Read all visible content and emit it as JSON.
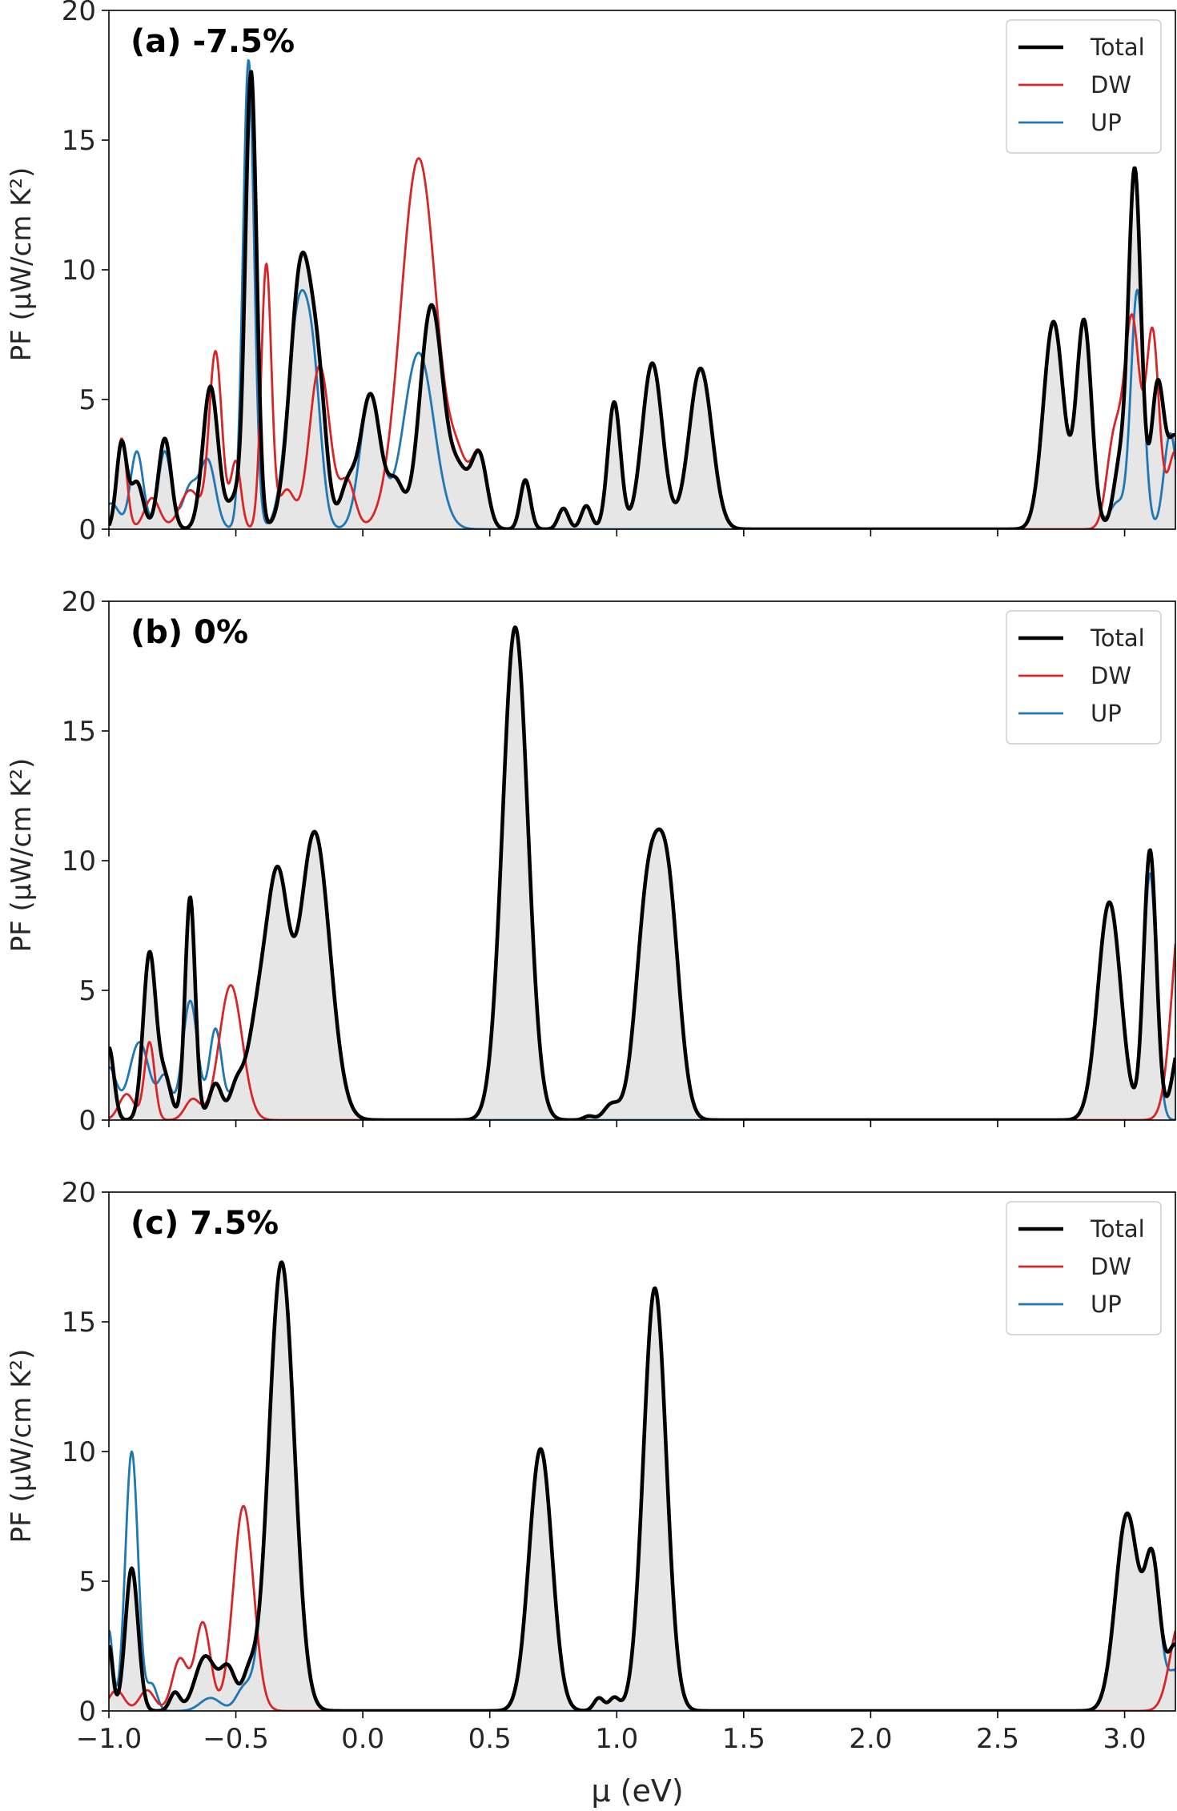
{
  "figure": {
    "xlabel": "μ (eV)",
    "ylabel": "PF (μW/cm K²)",
    "xlim": [
      -1.0,
      3.2
    ],
    "ylim": [
      0,
      20
    ],
    "xticks": [
      "−1.0",
      "−0.5",
      "0.0",
      "0.5",
      "1.0",
      "1.5",
      "2.0",
      "2.5",
      "3.0"
    ],
    "xtick_values": [
      -1.0,
      -0.5,
      0.0,
      0.5,
      1.0,
      1.5,
      2.0,
      2.5,
      3.0
    ],
    "yticks": [
      "0",
      "5",
      "10",
      "15",
      "20"
    ],
    "ytick_values": [
      0,
      5,
      10,
      15,
      20
    ],
    "legend": [
      {
        "label": "Total",
        "color": "#000000"
      },
      {
        "label": "DW",
        "color": "#d62728"
      },
      {
        "label": "UP",
        "color": "#1f77b4"
      }
    ]
  },
  "chart_data": [
    {
      "type": "line",
      "title": "(a) -7.5%",
      "xlabel": "",
      "ylabel": "PF (μW/cm K²)",
      "xlim": [
        -1.0,
        3.2
      ],
      "ylim": [
        0,
        20
      ],
      "legend_position": "top-right",
      "series": [
        {
          "name": "DW",
          "color": "#d62728",
          "kind": "peaks",
          "peaks": [
            [
              -0.95,
              3.5,
              0.02
            ],
            [
              -0.83,
              1.2,
              0.03
            ],
            [
              -0.68,
              1.5,
              0.04
            ],
            [
              -0.58,
              6.8,
              0.025
            ],
            [
              -0.5,
              2.6,
              0.02
            ],
            [
              -0.38,
              10.2,
              0.02
            ],
            [
              -0.3,
              1.5,
              0.03
            ],
            [
              -0.17,
              6.3,
              0.04
            ],
            [
              -0.06,
              1.8,
              0.03
            ],
            [
              0.22,
              14.3,
              0.07
            ],
            [
              0.38,
              2.1,
              0.04
            ],
            [
              0.46,
              2.7,
              0.03
            ],
            [
              0.64,
              1.9,
              0.02
            ],
            [
              0.79,
              0.8,
              0.02
            ],
            [
              0.88,
              0.9,
              0.02
            ],
            [
              0.99,
              4.9,
              0.025
            ],
            [
              1.14,
              6.4,
              0.04
            ],
            [
              1.33,
              6.2,
              0.045
            ],
            [
              2.96,
              3.5,
              0.03
            ],
            [
              3.03,
              8.0,
              0.03
            ],
            [
              3.11,
              7.5,
              0.025
            ],
            [
              3.2,
              3.0,
              0.03
            ]
          ]
        },
        {
          "name": "UP",
          "color": "#1f77b4",
          "kind": "peaks",
          "peaks": [
            [
              -0.99,
              1.0,
              0.03
            ],
            [
              -0.89,
              3.0,
              0.025
            ],
            [
              -0.78,
              3.0,
              0.025
            ],
            [
              -0.68,
              1.6,
              0.03
            ],
            [
              -0.61,
              2.6,
              0.03
            ],
            [
              -0.45,
              18.1,
              0.022
            ],
            [
              -0.25,
              8.6,
              0.045
            ],
            [
              -0.19,
              3.3,
              0.03
            ],
            [
              0.03,
              5.2,
              0.04
            ],
            [
              0.22,
              6.8,
              0.06
            ],
            [
              2.72,
              8.0,
              0.04
            ],
            [
              2.84,
              8.0,
              0.03
            ],
            [
              2.97,
              1.0,
              0.03
            ],
            [
              3.05,
              9.2,
              0.025
            ],
            [
              3.18,
              3.7,
              0.025
            ]
          ]
        },
        {
          "name": "Total",
          "color": "#000000",
          "kind": "peaks",
          "peaks": [
            [
              -0.95,
              3.3,
              0.02
            ],
            [
              -0.89,
              1.8,
              0.025
            ],
            [
              -0.78,
              3.5,
              0.025
            ],
            [
              -0.6,
              5.5,
              0.03
            ],
            [
              -0.5,
              1.2,
              0.03
            ],
            [
              -0.44,
              17.5,
              0.022
            ],
            [
              -0.24,
              10.4,
              0.045
            ],
            [
              -0.17,
              3.5,
              0.03
            ],
            [
              -0.06,
              1.6,
              0.03
            ],
            [
              0.03,
              5.2,
              0.04
            ],
            [
              0.13,
              1.7,
              0.03
            ],
            [
              0.27,
              8.6,
              0.045
            ],
            [
              0.38,
              2.1,
              0.04
            ],
            [
              0.46,
              2.7,
              0.03
            ],
            [
              0.64,
              1.9,
              0.02
            ],
            [
              0.79,
              0.8,
              0.02
            ],
            [
              0.88,
              0.9,
              0.02
            ],
            [
              0.99,
              4.9,
              0.025
            ],
            [
              1.14,
              6.4,
              0.04
            ],
            [
              1.33,
              6.2,
              0.045
            ],
            [
              2.72,
              8.0,
              0.04
            ],
            [
              2.84,
              8.0,
              0.03
            ],
            [
              2.98,
              2.3,
              0.025
            ],
            [
              3.04,
              13.8,
              0.025
            ],
            [
              3.13,
              5.5,
              0.025
            ],
            [
              3.2,
              3.5,
              0.03
            ]
          ]
        }
      ]
    },
    {
      "type": "line",
      "title": "(b) 0%",
      "xlabel": "",
      "ylabel": "PF (μW/cm K²)",
      "xlim": [
        -1.0,
        3.2
      ],
      "ylim": [
        0,
        20
      ],
      "legend_position": "top-right",
      "series": [
        {
          "name": "DW",
          "color": "#d62728",
          "kind": "peaks",
          "peaks": [
            [
              -0.93,
              1.0,
              0.03
            ],
            [
              -0.84,
              3.0,
              0.02
            ],
            [
              -0.67,
              0.8,
              0.03
            ],
            [
              -0.52,
              5.2,
              0.045
            ],
            [
              0.6,
              19.0,
              0.05
            ],
            [
              0.89,
              0.15,
              0.02
            ],
            [
              0.98,
              0.6,
              0.03
            ],
            [
              1.12,
              8.0,
              0.045
            ],
            [
              1.2,
              8.6,
              0.045
            ],
            [
              3.23,
              9.0,
              0.04
            ]
          ]
        },
        {
          "name": "UP",
          "color": "#1f77b4",
          "kind": "peaks",
          "peaks": [
            [
              -1.0,
              2.0,
              0.03
            ],
            [
              -0.88,
              3.0,
              0.04
            ],
            [
              -0.78,
              1.6,
              0.025
            ],
            [
              -0.68,
              4.6,
              0.03
            ],
            [
              -0.58,
              3.5,
              0.025
            ],
            [
              -0.5,
              1.0,
              0.025
            ],
            [
              -0.4,
              4.5,
              0.05
            ],
            [
              -0.33,
              7.3,
              0.04
            ],
            [
              -0.19,
              11.1,
              0.06
            ],
            [
              2.94,
              8.4,
              0.045
            ],
            [
              3.1,
              9.5,
              0.025
            ]
          ]
        },
        {
          "name": "Total",
          "color": "#000000",
          "kind": "peaks",
          "peaks": [
            [
              -1.0,
              2.8,
              0.02
            ],
            [
              -0.84,
              6.4,
              0.025
            ],
            [
              -0.78,
              1.6,
              0.025
            ],
            [
              -0.68,
              8.6,
              0.02
            ],
            [
              -0.58,
              1.4,
              0.025
            ],
            [
              -0.5,
              1.0,
              0.025
            ],
            [
              -0.4,
              4.5,
              0.05
            ],
            [
              -0.33,
              7.3,
              0.04
            ],
            [
              -0.19,
              11.1,
              0.06
            ],
            [
              0.6,
              19.0,
              0.05
            ],
            [
              0.89,
              0.15,
              0.02
            ],
            [
              0.98,
              0.6,
              0.03
            ],
            [
              1.12,
              8.0,
              0.045
            ],
            [
              1.2,
              8.6,
              0.045
            ],
            [
              2.94,
              8.4,
              0.045
            ],
            [
              3.1,
              10.4,
              0.025
            ],
            [
              3.22,
              3.0,
              0.03
            ]
          ]
        }
      ]
    },
    {
      "type": "line",
      "title": "(c) 7.5%",
      "xlabel": "μ (eV)",
      "ylabel": "PF (μW/cm K²)",
      "xlim": [
        -1.0,
        3.2
      ],
      "ylim": [
        0,
        20
      ],
      "legend_position": "top-right",
      "series": [
        {
          "name": "DW",
          "color": "#d62728",
          "kind": "peaks",
          "peaks": [
            [
              -0.97,
              0.8,
              0.03
            ],
            [
              -0.85,
              0.8,
              0.03
            ],
            [
              -0.72,
              2.0,
              0.03
            ],
            [
              -0.63,
              3.4,
              0.03
            ],
            [
              -0.47,
              7.9,
              0.04
            ],
            [
              0.7,
              10.1,
              0.045
            ],
            [
              0.93,
              0.5,
              0.02
            ],
            [
              0.99,
              0.5,
              0.02
            ],
            [
              1.15,
              16.3,
              0.045
            ],
            [
              3.22,
              3.5,
              0.04
            ]
          ]
        },
        {
          "name": "UP",
          "color": "#1f77b4",
          "kind": "peaks",
          "peaks": [
            [
              -1.0,
              3.1,
              0.015
            ],
            [
              -0.91,
              10.0,
              0.025
            ],
            [
              -0.83,
              1.0,
              0.02
            ],
            [
              -0.6,
              0.5,
              0.04
            ],
            [
              -0.47,
              0.8,
              0.03
            ],
            [
              -0.32,
              17.3,
              0.05
            ],
            [
              3.01,
              7.6,
              0.045
            ],
            [
              3.11,
              5.5,
              0.03
            ],
            [
              3.2,
              1.5,
              0.03
            ]
          ]
        },
        {
          "name": "Total",
          "color": "#000000",
          "kind": "peaks",
          "peaks": [
            [
              -1.0,
              2.5,
              0.015
            ],
            [
              -0.91,
              5.5,
              0.025
            ],
            [
              -0.74,
              0.7,
              0.02
            ],
            [
              -0.62,
              2.1,
              0.04
            ],
            [
              -0.53,
              1.6,
              0.03
            ],
            [
              -0.45,
              1.2,
              0.025
            ],
            [
              -0.32,
              17.3,
              0.05
            ],
            [
              0.7,
              10.1,
              0.045
            ],
            [
              0.93,
              0.5,
              0.02
            ],
            [
              0.99,
              0.5,
              0.02
            ],
            [
              1.15,
              16.3,
              0.045
            ],
            [
              3.01,
              7.6,
              0.045
            ],
            [
              3.11,
              5.5,
              0.03
            ],
            [
              3.2,
              2.5,
              0.03
            ]
          ]
        }
      ]
    }
  ]
}
